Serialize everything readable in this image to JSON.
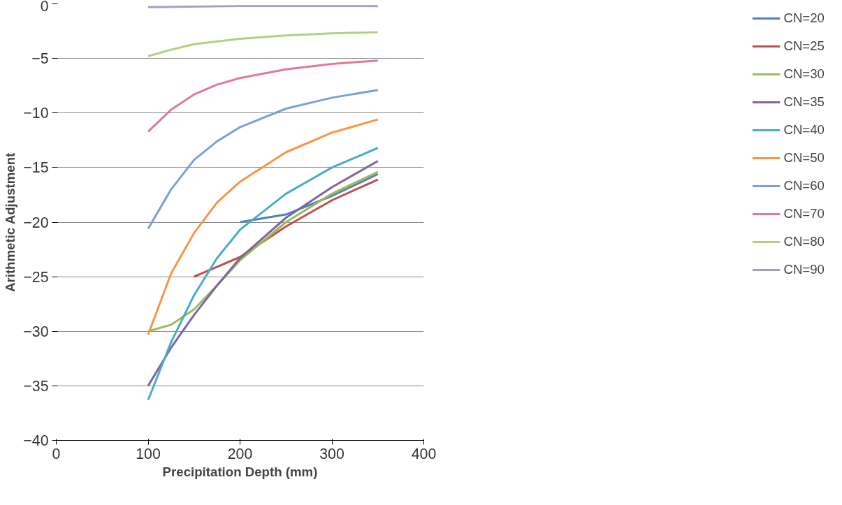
{
  "chart_data": {
    "type": "line",
    "xlabel": "Precipitation Depth (mm)",
    "ylabel": "Arithmetic Adjustment",
    "xlim": [
      0,
      400
    ],
    "xticks": [
      0,
      100,
      200,
      300,
      400
    ],
    "ylim": [
      -40,
      0
    ],
    "yticks": [
      -40,
      -35,
      -30,
      -25,
      -20,
      -15,
      -10,
      -5,
      0
    ],
    "grid": "y",
    "legend": "right",
    "marker": "none",
    "line_style": "solid",
    "series": [
      {
        "name": "CN=20",
        "color": "#4f81bd",
        "x": [
          200,
          250,
          300,
          350
        ],
        "values": [
          -20,
          -19.3,
          -17.6,
          -15.6
        ]
      },
      {
        "name": "CN=25",
        "color": "#c0504d",
        "x": [
          150,
          200,
          250,
          300,
          350
        ],
        "values": [
          -25,
          -23.2,
          -20.4,
          -18,
          -16.1
        ]
      },
      {
        "name": "CN=30",
        "color": "#9bbb59",
        "x": [
          100,
          125,
          150,
          175,
          200,
          250,
          300,
          350
        ],
        "values": [
          -30,
          -29.4,
          -28,
          -25.8,
          -23.5,
          -20,
          -17.4,
          -15.4
        ]
      },
      {
        "name": "CN=35",
        "color": "#8064a2",
        "x": [
          100,
          125,
          150,
          175,
          200,
          250,
          300,
          350
        ],
        "values": [
          -35,
          -31.5,
          -28.5,
          -25.8,
          -23.3,
          -19.6,
          -16.8,
          -14.4
        ]
      },
      {
        "name": "CN=40",
        "color": "#4bacc6",
        "x": [
          100,
          125,
          150,
          175,
          200,
          250,
          300,
          350
        ],
        "values": [
          -36.3,
          -31,
          -26.7,
          -23.3,
          -20.7,
          -17.4,
          -15,
          -13.2
        ]
      },
      {
        "name": "CN=50",
        "color": "#f79646",
        "x": [
          100,
          125,
          150,
          175,
          200,
          250,
          300,
          350
        ],
        "values": [
          -30.3,
          -24.7,
          -21,
          -18.2,
          -16.3,
          -13.6,
          -11.8,
          -10.6
        ]
      },
      {
        "name": "CN=60",
        "color": "#7f9fd8",
        "x": [
          100,
          125,
          150,
          175,
          200,
          250,
          300,
          350
        ],
        "values": [
          -20.6,
          -17,
          -14.3,
          -12.6,
          -11.3,
          -9.6,
          -8.6,
          -7.9
        ]
      },
      {
        "name": "CN=70",
        "color": "#e07b91",
        "x": [
          100,
          125,
          150,
          175,
          200,
          250,
          300,
          350
        ],
        "values": [
          -11.7,
          -9.7,
          -8.3,
          -7.4,
          -6.8,
          -6,
          -5.5,
          -5.2
        ]
      },
      {
        "name": "CN=80",
        "color": "#b3cf7f",
        "x": [
          100,
          125,
          150,
          200,
          250,
          300,
          350
        ],
        "values": [
          -4.8,
          -4.2,
          -3.7,
          -3.2,
          -2.9,
          -2.7,
          -2.6
        ]
      },
      {
        "name": "CN=90",
        "color": "#a89cc8",
        "x": [
          100,
          200,
          350
        ],
        "values": [
          -0.3,
          -0.2,
          -0.2
        ]
      }
    ]
  }
}
